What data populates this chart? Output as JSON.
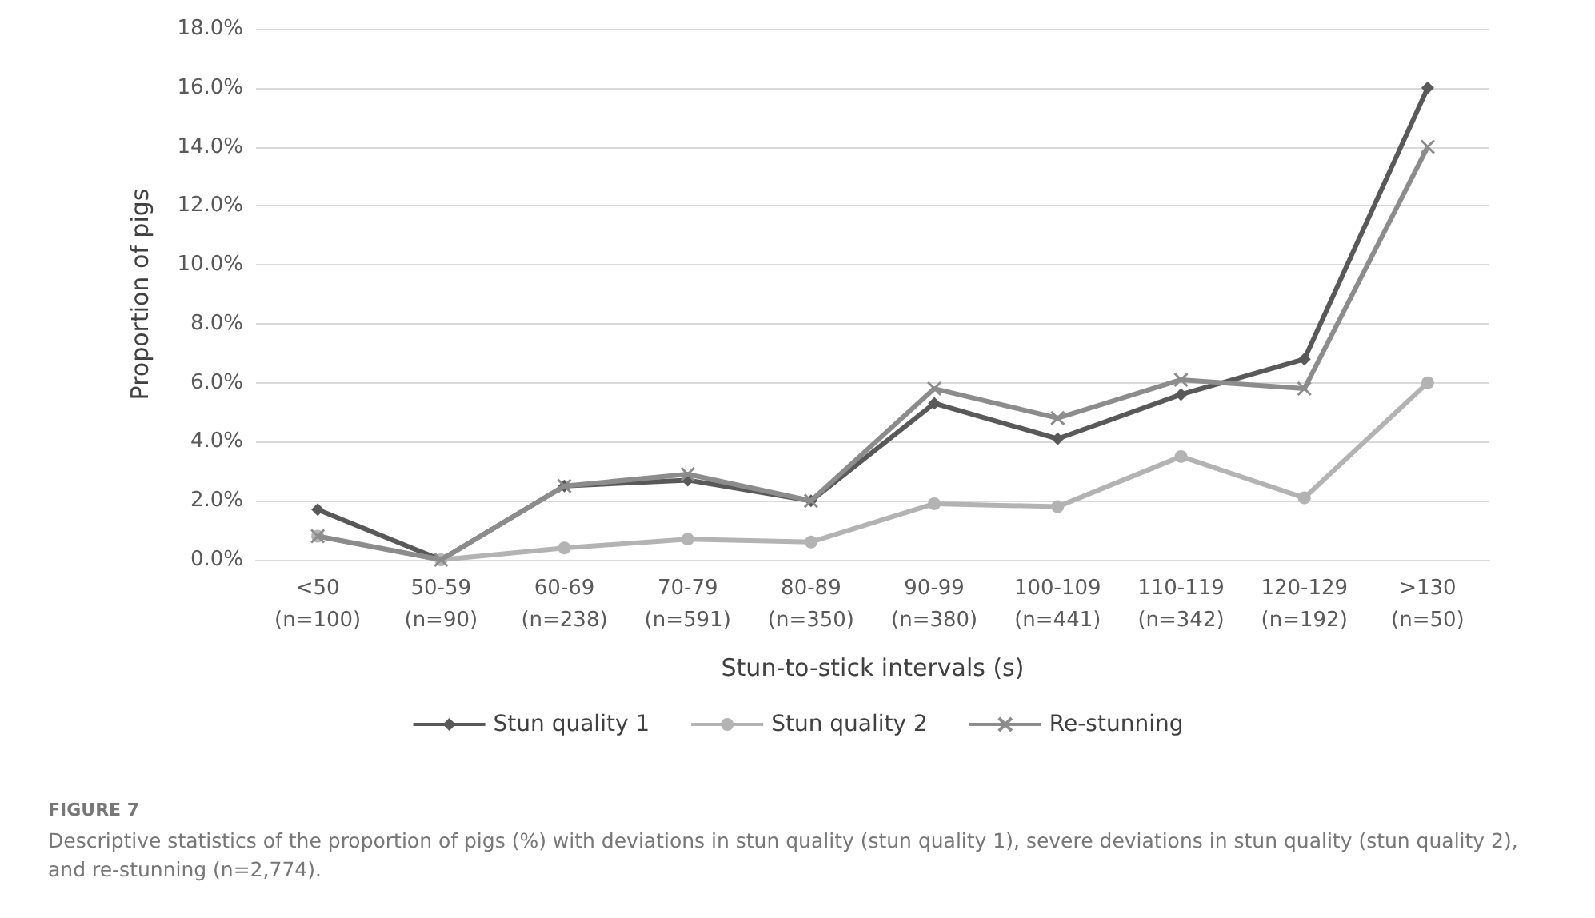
{
  "chart_data": {
    "type": "line",
    "xlabel": "Stun-to-stick intervals (s)",
    "ylabel": "Proportion of pigs",
    "categories": [
      "<50\n(n=100)",
      "50-59\n(n=90)",
      "60-69\n(n=238)",
      "70-79\n(n=591)",
      "80-89\n(n=350)",
      "90-99\n(n=380)",
      "100-109\n(n=441)",
      "110-119\n(n=342)",
      "120-129\n(n=192)",
      ">130\n(n=50)"
    ],
    "series": [
      {
        "name": "Stun quality 1",
        "color": "#595959",
        "marker": "diamond",
        "values": [
          1.7,
          0,
          2.5,
          2.7,
          2.0,
          5.3,
          4.1,
          5.6,
          6.8,
          16.0
        ]
      },
      {
        "name": "Stun quality 2",
        "color": "#b3b3b3",
        "marker": "circle",
        "values": [
          0.8,
          0,
          0.4,
          0.7,
          0.6,
          1.9,
          1.8,
          3.5,
          2.1,
          6.0
        ]
      },
      {
        "name": "Re-stunning",
        "color": "#8c8c8c",
        "marker": "cross",
        "values": [
          0.8,
          0,
          2.5,
          2.9,
          2.0,
          5.8,
          4.8,
          6.1,
          5.8,
          14.0
        ]
      }
    ],
    "ylim": [
      0,
      18
    ],
    "yticks": [
      {
        "value": 0,
        "label": "0.0%"
      },
      {
        "value": 2,
        "label": "2.0%"
      },
      {
        "value": 4,
        "label": "4.0%"
      },
      {
        "value": 6,
        "label": "6.0%"
      },
      {
        "value": 8,
        "label": "8.0%"
      },
      {
        "value": 10,
        "label": "10.0%"
      },
      {
        "value": 12,
        "label": "12.0%"
      },
      {
        "value": 14,
        "label": "14.0%"
      },
      {
        "value": 16,
        "label": "16.0%"
      },
      {
        "value": 18,
        "label": "18.0%"
      }
    ],
    "grid": "y",
    "legend": "bottom",
    "annotations": [
      "FIGURE 7",
      "Descriptive statistics of the proportion of pigs (%) with deviations in stun quality (stun quality 1), severe deviations in stun quality (stun quality 2), and re-stunning (n=2,774)."
    ]
  }
}
